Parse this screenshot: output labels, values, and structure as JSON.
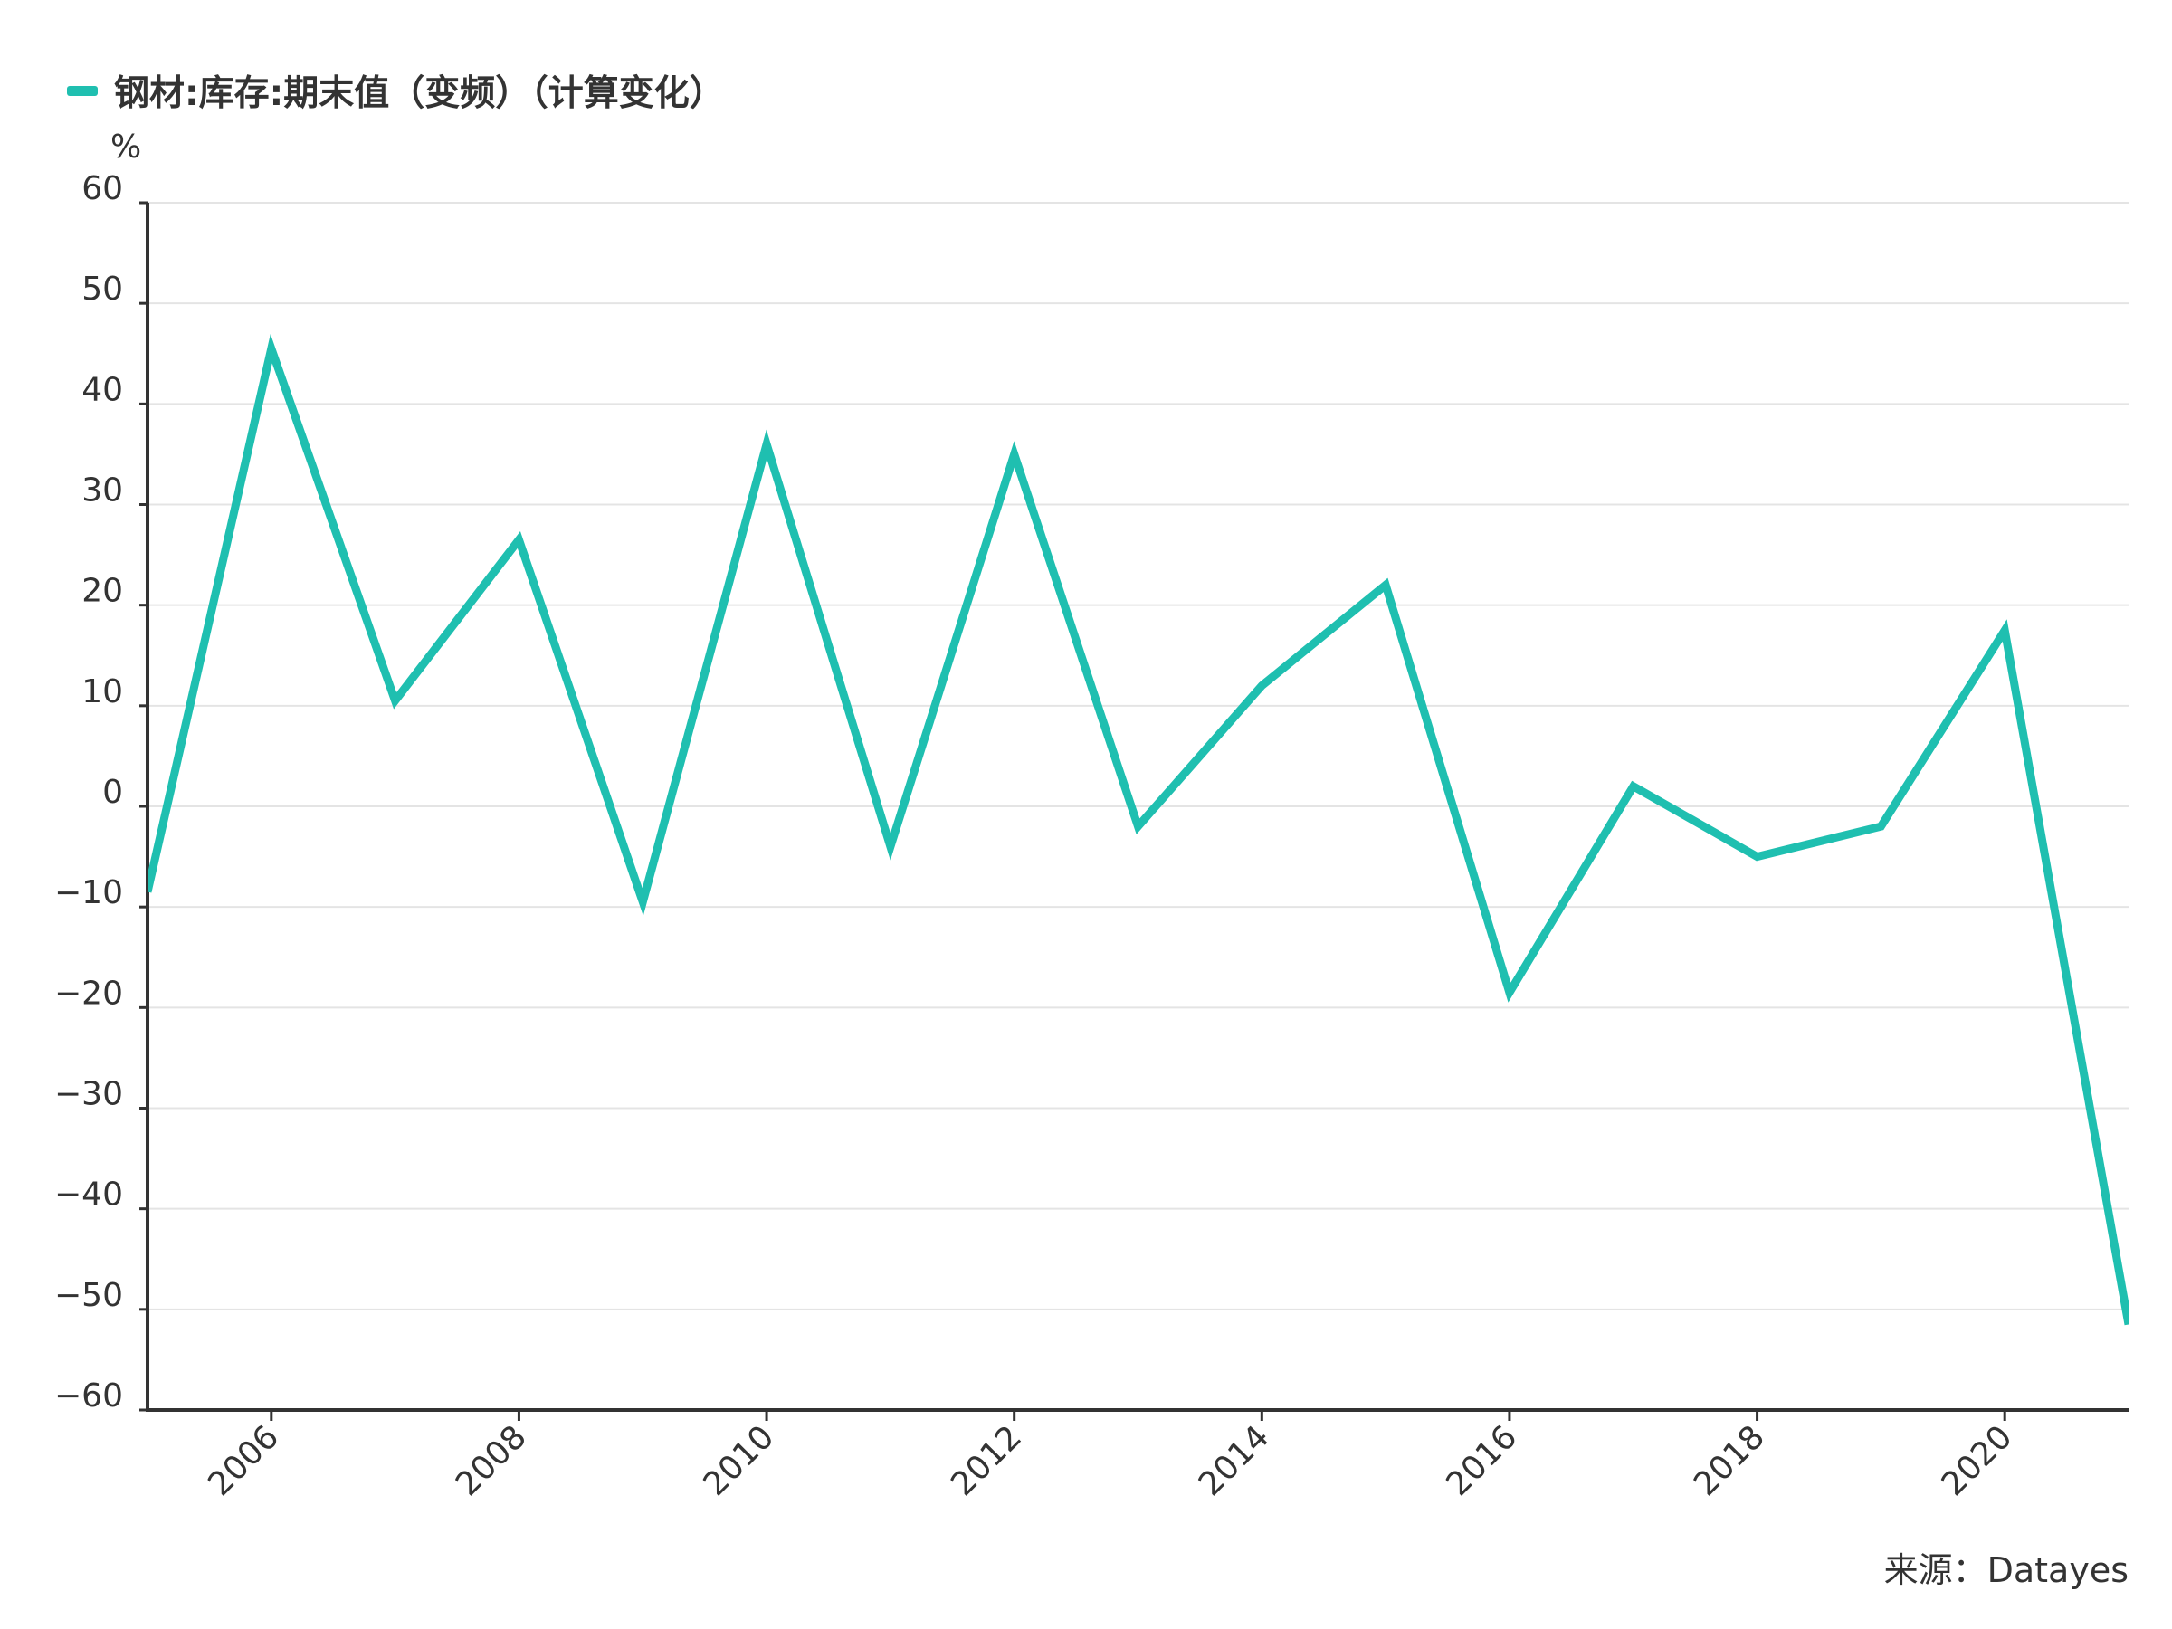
{
  "chart_data": {
    "type": "line",
    "legend_position": "top-left",
    "grid": true,
    "ylabel": "%",
    "ylim": [
      -60,
      60
    ],
    "yticks": [
      60,
      50,
      40,
      30,
      20,
      10,
      0,
      -10,
      -20,
      -30,
      -40,
      -50,
      -60
    ],
    "xlim": [
      2005,
      2021
    ],
    "xticks": [
      2006,
      2008,
      2010,
      2012,
      2014,
      2016,
      2018,
      2020
    ],
    "series": [
      {
        "name": "钢材:库存:期末值（变频）（计算变化）",
        "color": "#1fbfb0",
        "x": [
          2005,
          2006,
          2007,
          2008,
          2009,
          2010,
          2011,
          2012,
          2013,
          2014,
          2015,
          2016,
          2017,
          2018,
          2019,
          2020,
          2021
        ],
        "values": [
          -8.5,
          45.5,
          10.5,
          26.5,
          -9.5,
          36,
          -4,
          35,
          -2,
          12,
          22,
          -18.5,
          2,
          -5,
          -2,
          17.5,
          -51.5
        ]
      }
    ],
    "source": "来源：Datayes"
  }
}
